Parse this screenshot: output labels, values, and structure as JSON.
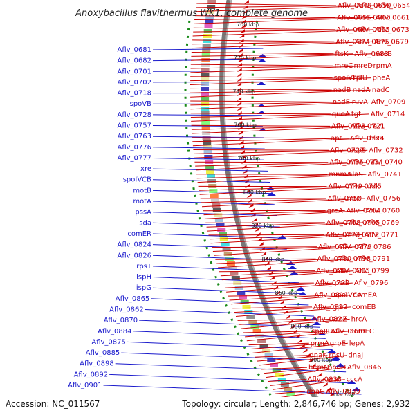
{
  "title": "Anoxybacillus flavithermus WK1, complete genome",
  "footer": {
    "accession": "Accession: NC_011567",
    "topology": "Topology: circular; Length: 2,846,746 bp; Genes: 2,932"
  },
  "colors": {
    "reverse_strand": "#1a1acc",
    "forward_strand": "#cc0000",
    "backbone": "#777777",
    "ring_dots": "#1a8a1a"
  },
  "ticks": [
    "700 kbp",
    "720 kbp",
    "740 kbp",
    "760 kbp",
    "780 kbp",
    "800 kbp",
    "820 kbp",
    "840 kbp",
    "860 kbp",
    "880 kbp",
    "900 kbp",
    "920 kbp"
  ],
  "left_labels": [
    "Aflv_0681",
    "Aflv_0682",
    "Aflv_0701",
    "Aflv_0702",
    "Aflv_0718",
    "spoVB",
    "Aflv_0728",
    "Aflv_0757",
    "Aflv_0763",
    "Aflv_0776",
    "Aflv_0777",
    "xre",
    "spoIVCB",
    "motB",
    "motA",
    "pssA",
    "sda",
    "comER",
    "Aflv_0824",
    "Aflv_0826",
    "rpsT",
    "ispH",
    "ispG",
    "Aflv_0865",
    "Aflv_0862",
    "Aflv_0870",
    "Aflv_0884",
    "Aflv_0875",
    "Aflv_0885",
    "Aflv_0898",
    "Aflv_0892",
    "Aflv_0901"
  ],
  "right_labels": [
    "Aflv_0649",
    "Aflv_0650",
    "Aflv_0654",
    "Aflv_0655",
    "Aflv_0660",
    "Aflv_0661",
    "Aflv_0664",
    "Aflv_0665",
    "Aflv_0673",
    "Aflv_0674",
    "Aflv_0675",
    "Aflv_0679",
    "ftsK",
    "Aflv_0683",
    "mreB",
    "mreC",
    "mreD",
    "rpmA",
    "spoIVFB",
    "rplU",
    "pheA",
    "nadB",
    "nadA",
    "nadC",
    "nadE",
    "ruvA",
    "Aflv_0709",
    "queA",
    "tgt",
    "Aflv_0714",
    "Aflv_0723",
    "Aflv_0721",
    "relA",
    "apt",
    "Aflv_0724",
    "hisS",
    "Aflv_0727",
    "aspS",
    "Aflv_0732",
    "Aflv_0735",
    "Aflv_0734",
    "Aflv_0740",
    "mnmA",
    "alaS",
    "Aflv_0741",
    "Aflv_0749",
    "Aflv_0745",
    "udk",
    "Aflv_0750",
    "mtn",
    "Aflv_0756",
    "greA",
    "Aflv_0764",
    "Aflv_0760",
    "Aflv_0768",
    "Aflv_0765",
    "Aflv_0769",
    "Aflv_0773",
    "Aflv_0772",
    "Aflv_0771",
    "Aflv_0774",
    "Aflv_0779",
    "Aflv_0786",
    "Aflv_0780",
    "Aflv_0798",
    "Aflv_0791",
    "Aflv_0784",
    "Aflv_0805",
    "Aflv_0799",
    "Aflv_0792",
    "psd",
    "Aflv_0796",
    "Aflv_0811",
    "spoIVCA",
    "comEA",
    "Aflv_0812",
    "gpr",
    "comEB",
    "Aflv_0822",
    "aroE",
    "hrcA",
    "spoIIP",
    "Aflv_0830",
    "comEC",
    "prmA",
    "grpE",
    "lepA",
    "dnaK",
    "rpsU",
    "dnaJ",
    "hemN",
    "phoH",
    "Aflv_0846",
    "Aflv_0838",
    "era",
    "cccA",
    "dnaG",
    "Aflv_0839"
  ]
}
